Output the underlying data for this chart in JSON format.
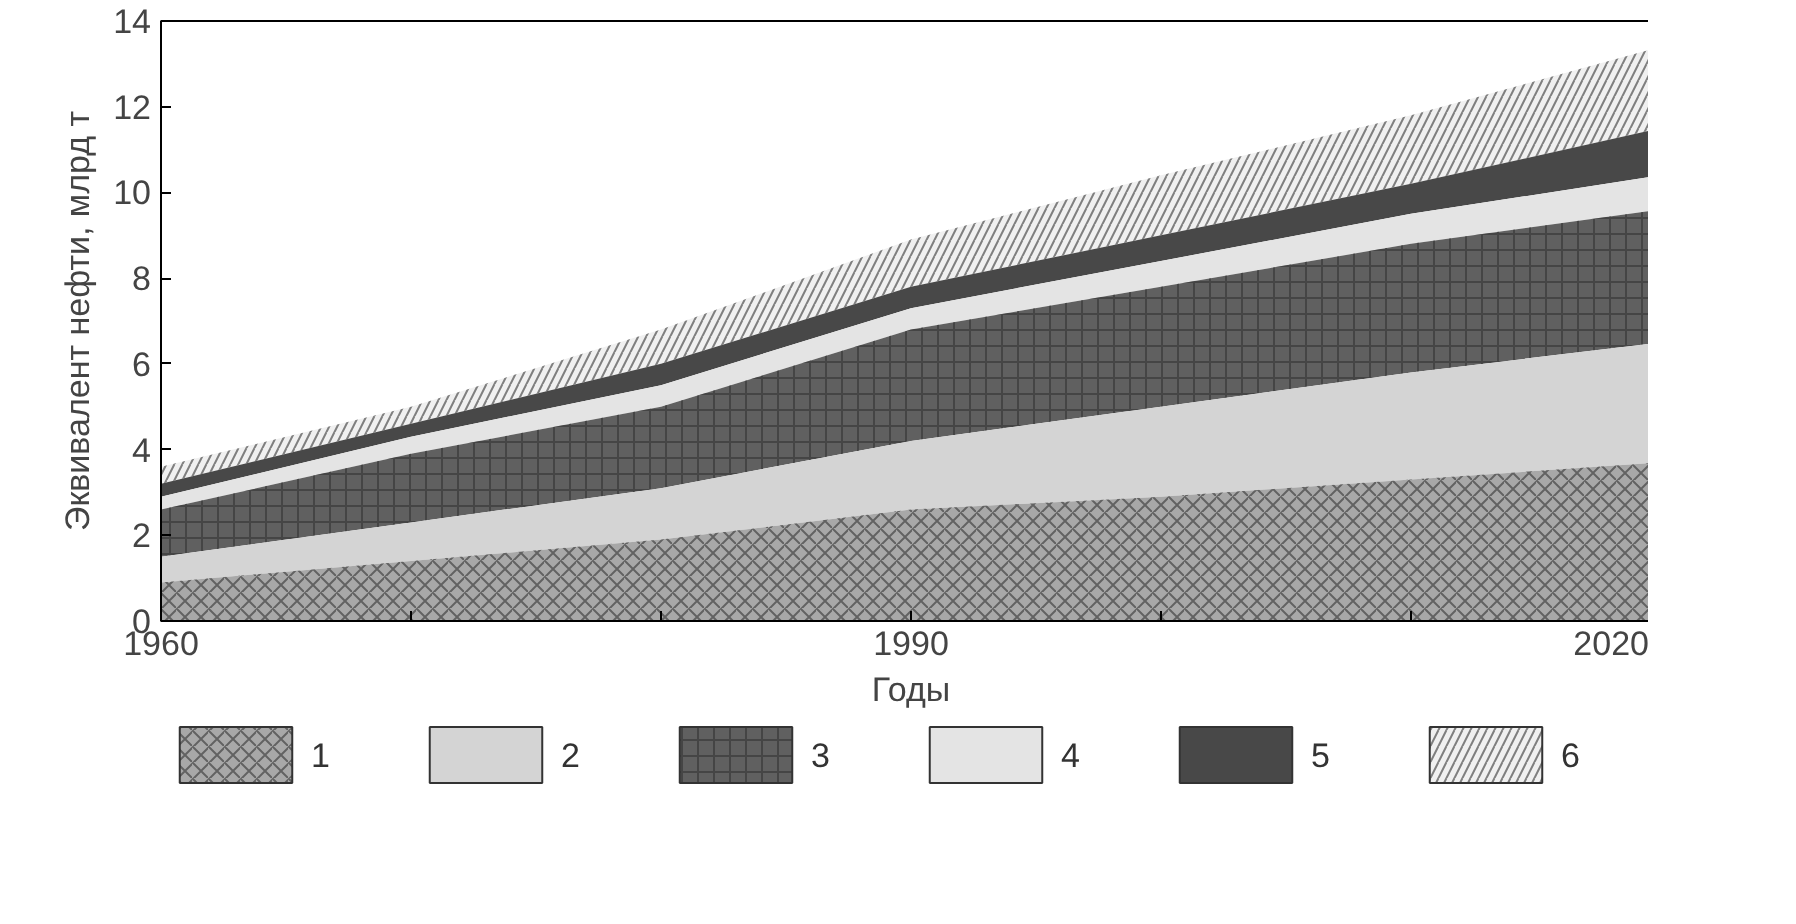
{
  "chart_data": {
    "type": "area",
    "stacked": true,
    "xlabel": "Годы",
    "ylabel": "Эквивалент нефти, млрд т",
    "x": [
      1960,
      1970,
      1980,
      1990,
      2000,
      2010,
      2020
    ],
    "xlim": [
      1960,
      2020
    ],
    "xticks": [
      1960,
      {
        "value": 1970,
        "label": null
      },
      {
        "value": 1980,
        "label": null
      },
      1990,
      {
        "value": 2000,
        "label": null
      },
      {
        "value": 2010,
        "label": null
      },
      2020
    ],
    "ylim": [
      0,
      14
    ],
    "yticks": [
      0,
      2,
      4,
      6,
      8,
      10,
      12,
      14
    ],
    "grid": false,
    "legend": "bottom",
    "series": [
      {
        "name": "1",
        "color": "#a8a8a8",
        "values": [
          0.9,
          1.4,
          1.9,
          2.6,
          2.9,
          3.3,
          3.7
        ]
      },
      {
        "name": "2",
        "color": "#d4d4d4",
        "values": [
          0.6,
          0.9,
          1.2,
          1.6,
          2.1,
          2.5,
          2.8
        ]
      },
      {
        "name": "3",
        "color": "#606060",
        "values": [
          1.1,
          1.6,
          1.9,
          2.6,
          2.8,
          3.0,
          3.1
        ]
      },
      {
        "name": "4",
        "color": "#e4e4e4",
        "values": [
          0.3,
          0.4,
          0.5,
          0.5,
          0.6,
          0.7,
          0.8
        ]
      },
      {
        "name": "5",
        "color": "#484848",
        "values": [
          0.3,
          0.3,
          0.5,
          0.5,
          0.6,
          0.7,
          1.1
        ]
      },
      {
        "name": "6",
        "color": "#f0f0f0",
        "values": [
          0.4,
          0.4,
          0.8,
          1.1,
          1.4,
          1.6,
          1.9
        ]
      }
    ]
  }
}
